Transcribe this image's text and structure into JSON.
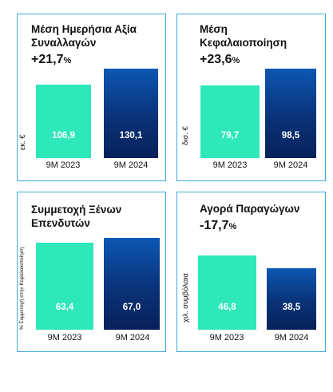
{
  "colors": {
    "border": "#3fa9de",
    "bar_2023": "#2ee8b9",
    "bar_2024": "#0a3278"
  },
  "chart_data": [
    {
      "type": "bar",
      "title": "Μέση Ημερήσια Αξία Συναλλαγών",
      "title_lines": [
        "Μέση Ημερήσια Αξία",
        "Συναλλαγών"
      ],
      "change": "+21,7",
      "change_unit": "%",
      "ylabel": "εκ. €",
      "categories": [
        "9M 2023",
        "9M 2024"
      ],
      "values": [
        106.9,
        130.1
      ],
      "labels": [
        "106,9",
        "130,1"
      ]
    },
    {
      "type": "bar",
      "title": "Μέση Κεφαλαιοποίηση",
      "title_lines": [
        "Μέση",
        "Κεφαλαιοποίηση"
      ],
      "change": "+23,6",
      "change_unit": "%",
      "ylabel": "δισ. €",
      "categories": [
        "9M 2023",
        "9M 2024"
      ],
      "values": [
        79.7,
        98.5
      ],
      "labels": [
        "79,7",
        "98,5"
      ]
    },
    {
      "type": "bar",
      "title": "Συμμετοχή Ξένων Επενδυτών",
      "title_lines": [
        "Συμμετοχή Ξένων",
        "Επενδυτών"
      ],
      "change": "",
      "change_unit": "",
      "ylabel": "% Συμμετοχή στην Κεφαλαιοποίηση",
      "categories": [
        "9M 2023",
        "9M 2024"
      ],
      "values": [
        63.4,
        67.0
      ],
      "labels": [
        "63,4",
        "67,0"
      ]
    },
    {
      "type": "bar",
      "title": "Αγορά Παραγώγων",
      "title_lines": [
        "Αγορά Παραγώγων",
        ""
      ],
      "change": "-17,7",
      "change_unit": "%",
      "ylabel": "χιλ. συμβόλαια",
      "categories": [
        "9M 2023",
        "9M 2024"
      ],
      "values": [
        46.8,
        38.5
      ],
      "labels": [
        "46,8",
        "38,5"
      ]
    }
  ]
}
